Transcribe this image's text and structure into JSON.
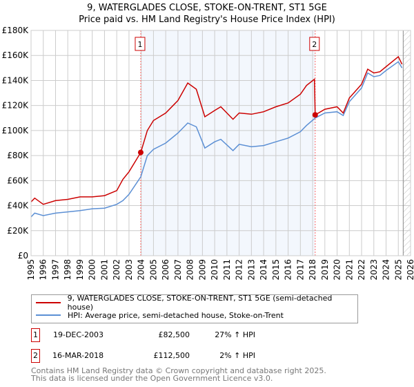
{
  "chart_data": {
    "type": "line",
    "title": "9, WATERGLADES CLOSE, STOKE-ON-TRENT, ST1 5GE",
    "subtitle": "Price paid vs. HM Land Registry's House Price Index (HPI)",
    "xlim": [
      1995,
      2026
    ],
    "ylim": [
      0,
      180000
    ],
    "x_ticks": [
      "1995",
      "1996",
      "1997",
      "1998",
      "1999",
      "2000",
      "2001",
      "2002",
      "2003",
      "2004",
      "2005",
      "2006",
      "2007",
      "2008",
      "2009",
      "2010",
      "2011",
      "2012",
      "2013",
      "2014",
      "2015",
      "2016",
      "2017",
      "2018",
      "2019",
      "2020",
      "2021",
      "2022",
      "2023",
      "2024",
      "2025",
      "2026"
    ],
    "y_ticks": [
      {
        "v": 0,
        "label": "£0"
      },
      {
        "v": 20000,
        "label": "£20K"
      },
      {
        "v": 40000,
        "label": "£40K"
      },
      {
        "v": 60000,
        "label": "£60K"
      },
      {
        "v": 80000,
        "label": "£80K"
      },
      {
        "v": 100000,
        "label": "£100K"
      },
      {
        "v": 120000,
        "label": "£120K"
      },
      {
        "v": 140000,
        "label": "£140K"
      },
      {
        "v": 160000,
        "label": "£160K"
      },
      {
        "v": 180000,
        "label": "£180K"
      }
    ],
    "grid": true,
    "shaded_range": [
      2003.96,
      2018.21
    ],
    "hatched_from": 2025.4,
    "series": [
      {
        "name": "9, WATERGLADES CLOSE, STOKE-ON-TRENT, ST1 5GE (semi-detached house)",
        "color": "#cc0000",
        "x": [
          1995,
          1995.3,
          1996,
          1997,
          1998,
          1999,
          2000,
          2001,
          2002,
          2002.5,
          2003,
          2003.96,
          2004.5,
          2005,
          2006,
          2007,
          2007.8,
          2008.5,
          2009.2,
          2010,
          2010.5,
          2011.5,
          2012,
          2013,
          2014,
          2015,
          2016,
          2017,
          2017.5,
          2018.15,
          2018.21,
          2019,
          2020,
          2020.5,
          2021,
          2022,
          2022.5,
          2023,
          2023.5,
          2024,
          2025,
          2025.3
        ],
        "y": [
          43000,
          46000,
          41000,
          44000,
          45000,
          47000,
          47000,
          48000,
          52000,
          61000,
          67000,
          82500,
          100000,
          108000,
          114000,
          124000,
          138000,
          133000,
          111000,
          116000,
          119000,
          109000,
          114000,
          113000,
          115000,
          119000,
          122000,
          129000,
          136000,
          141000,
          112500,
          117000,
          119000,
          114000,
          126000,
          137000,
          149000,
          146000,
          147000,
          151000,
          159000,
          153000
        ]
      },
      {
        "name": "HPI: Average price, semi-detached house, Stoke-on-Trent",
        "color": "#5b8fd4",
        "x": [
          1995,
          1995.3,
          1996,
          1997,
          1998,
          1999,
          2000,
          2001,
          2002,
          2002.5,
          2003,
          2003.96,
          2004.5,
          2005,
          2006,
          2007,
          2007.8,
          2008.5,
          2009.2,
          2010,
          2010.5,
          2011.5,
          2012,
          2013,
          2014,
          2015,
          2016,
          2017,
          2017.5,
          2018.21,
          2019,
          2020,
          2020.5,
          2021,
          2022,
          2022.5,
          2023,
          2023.5,
          2024,
          2025,
          2025.3
        ],
        "y": [
          31000,
          34000,
          32000,
          34000,
          35000,
          36000,
          37500,
          38000,
          41000,
          44000,
          49000,
          63000,
          80000,
          85000,
          90000,
          98000,
          106000,
          103000,
          86000,
          91000,
          93000,
          84000,
          89000,
          87000,
          88000,
          91000,
          94000,
          99000,
          104000,
          110000,
          114000,
          115000,
          112000,
          123000,
          134000,
          146000,
          143000,
          144000,
          148000,
          155000,
          150000
        ]
      }
    ],
    "sales": [
      {
        "id": "1",
        "x": 2003.96,
        "date": "19-DEC-2003",
        "price": 82500,
        "price_label": "£82,500",
        "hpi": "27% ↑ HPI"
      },
      {
        "id": "2",
        "x": 2018.21,
        "date": "16-MAR-2018",
        "price": 112500,
        "price_label": "£112,500",
        "hpi": "2% ↑ HPI"
      }
    ]
  },
  "footer": {
    "line1": "Contains HM Land Registry data © Crown copyright and database right 2025.",
    "line2": "This data is licensed under the Open Government Licence v3.0."
  }
}
